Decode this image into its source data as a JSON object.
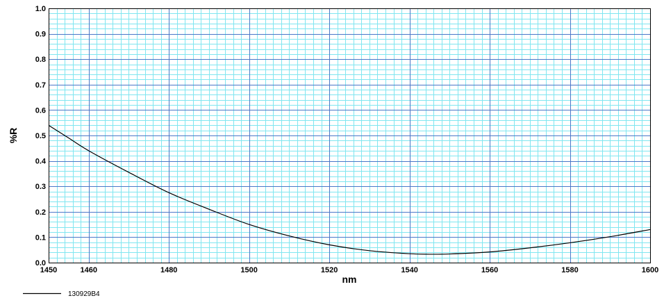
{
  "chart_data": {
    "type": "line",
    "xlabel": "nm",
    "ylabel": "%R",
    "xlim": [
      1450,
      1600
    ],
    "ylim": [
      0.0,
      1.0
    ],
    "x_ticks": [
      "1450",
      "1460",
      "1480",
      "1500",
      "1520",
      "1540",
      "1560",
      "1580",
      "1600"
    ],
    "y_ticks": [
      "0.0",
      "0.1",
      "0.2",
      "0.3",
      "0.4",
      "0.5",
      "0.6",
      "0.7",
      "0.8",
      "0.9",
      "1.0"
    ],
    "grid": true,
    "legend_position": "bottom-left",
    "colors": {
      "major_grid": "#4a78c8",
      "minor_grid": "#80e6f0",
      "line": "#000000"
    },
    "series": [
      {
        "name": "130929B4",
        "x": [
          1450,
          1455,
          1460,
          1470,
          1480,
          1490,
          1500,
          1510,
          1520,
          1530,
          1540,
          1545,
          1550,
          1560,
          1570,
          1580,
          1590,
          1600
        ],
        "y": [
          0.54,
          0.49,
          0.44,
          0.355,
          0.275,
          0.21,
          0.15,
          0.105,
          0.07,
          0.047,
          0.035,
          0.033,
          0.034,
          0.042,
          0.058,
          0.078,
          0.102,
          0.13
        ]
      }
    ]
  }
}
